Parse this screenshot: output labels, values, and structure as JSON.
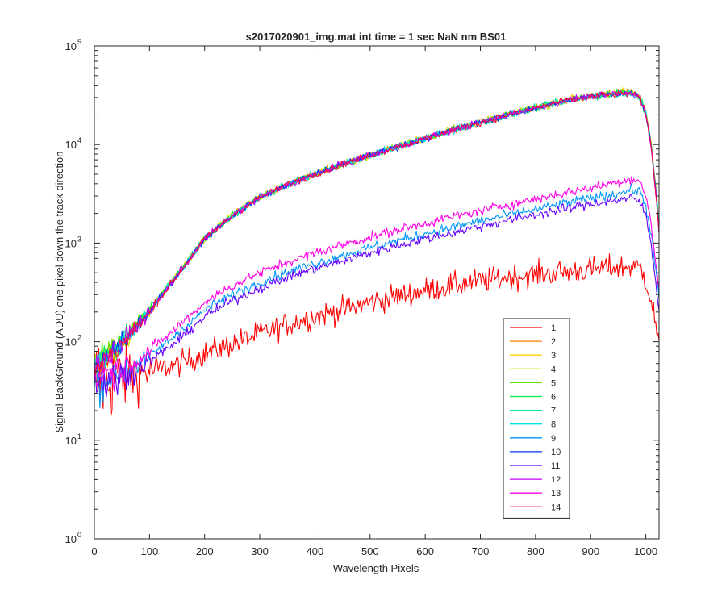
{
  "chart_data": {
    "type": "line",
    "title": "s2017020901_img.mat int time = 1 sec  NaN nm BS01",
    "xlabel": "Wavelength Pixels",
    "ylabel": "Signal-BackGround (ADU) one pixel down the track direction",
    "xlim": [
      0,
      1024
    ],
    "ylim": [
      1,
      100000
    ],
    "y_scale": "log",
    "grid": false,
    "legend_position": "bottom-right",
    "x_ticks": [
      "0",
      "100",
      "200",
      "300",
      "400",
      "500",
      "600",
      "700",
      "800",
      "900",
      "1000"
    ],
    "y_ticks": [
      {
        "base": "10",
        "exp": "0",
        "value": 1
      },
      {
        "base": "10",
        "exp": "1",
        "value": 10
      },
      {
        "base": "10",
        "exp": "2",
        "value": 100
      },
      {
        "base": "10",
        "exp": "3",
        "value": 1000
      },
      {
        "base": "10",
        "exp": "4",
        "value": 10000
      },
      {
        "base": "10",
        "exp": "5",
        "value": 100000
      }
    ],
    "x": [
      0,
      20,
      40,
      60,
      80,
      100,
      150,
      200,
      250,
      300,
      350,
      400,
      450,
      500,
      550,
      600,
      650,
      700,
      750,
      800,
      850,
      900,
      950,
      975,
      990,
      1000,
      1010,
      1020,
      1024
    ],
    "series": [
      {
        "name": "1",
        "color": "#ff0000",
        "noise": 0.09,
        "values": [
          40,
          40,
          42,
          45,
          48,
          50,
          58,
          75,
          95,
          120,
          150,
          180,
          210,
          250,
          290,
          330,
          370,
          410,
          450,
          480,
          510,
          540,
          570,
          580,
          560,
          430,
          260,
          130,
          90
        ]
      },
      {
        "name": "2",
        "color": "#ff7f00",
        "noise": 0.025,
        "values": [
          50,
          65,
          85,
          110,
          150,
          200,
          470,
          1100,
          1900,
          2900,
          3900,
          5000,
          6300,
          7800,
          9500,
          11500,
          14000,
          16800,
          20000,
          23500,
          27500,
          31000,
          33500,
          34000,
          30000,
          21000,
          10000,
          2800,
          1500
        ]
      },
      {
        "name": "3",
        "color": "#ffd400",
        "noise": 0.025,
        "values": [
          50,
          65,
          86,
          112,
          152,
          205,
          480,
          1120,
          1950,
          2950,
          3950,
          5050,
          6350,
          7850,
          9600,
          11600,
          14100,
          16900,
          20100,
          23700,
          27700,
          31300,
          34000,
          34600,
          30500,
          21500,
          10200,
          2900,
          1550
        ]
      },
      {
        "name": "4",
        "color": "#c8e600",
        "noise": 0.025,
        "values": [
          50,
          65,
          85,
          111,
          150,
          202,
          475,
          1110,
          1920,
          2920,
          3920,
          5020,
          6320,
          7820,
          9550,
          11550,
          14050,
          16850,
          20050,
          23600,
          27600,
          31100,
          33700,
          34200,
          30200,
          21200,
          10100,
          2850,
          1500
        ]
      },
      {
        "name": "5",
        "color": "#64e600",
        "noise": 0.025,
        "values": [
          55,
          70,
          92,
          118,
          160,
          210,
          485,
          1120,
          1930,
          2930,
          3930,
          5030,
          6330,
          7830,
          9560,
          11560,
          14060,
          16860,
          20060,
          23600,
          27600,
          31000,
          33500,
          33900,
          30000,
          21000,
          10000,
          2800,
          1450
        ]
      },
      {
        "name": "6",
        "color": "#00f050",
        "noise": 0.025,
        "values": [
          55,
          72,
          95,
          120,
          162,
          212,
          480,
          1110,
          1910,
          2910,
          3910,
          5010,
          6310,
          7810,
          9540,
          11540,
          14040,
          16840,
          20040,
          23550,
          27550,
          30900,
          33300,
          33700,
          29800,
          20900,
          9900,
          2750,
          1400
        ]
      },
      {
        "name": "7",
        "color": "#00e6a0",
        "noise": 0.025,
        "values": [
          52,
          68,
          88,
          114,
          155,
          205,
          475,
          1100,
          1900,
          2900,
          3900,
          5000,
          6300,
          7800,
          9520,
          11520,
          14020,
          16820,
          20020,
          23500,
          27500,
          30800,
          33200,
          33600,
          29700,
          20800,
          9800,
          2700,
          1350
        ]
      },
      {
        "name": "8",
        "color": "#00e6e6",
        "noise": 0.025,
        "values": [
          52,
          67,
          87,
          112,
          152,
          203,
          472,
          1095,
          1895,
          2895,
          3895,
          4995,
          6295,
          7795,
          9510,
          11510,
          14010,
          16810,
          20010,
          23450,
          27450,
          30700,
          33100,
          33500,
          29600,
          20700,
          9700,
          2650,
          1300
        ]
      },
      {
        "name": "9",
        "color": "#0096ff",
        "noise": 0.035,
        "values": [
          40,
          42,
          46,
          52,
          60,
          70,
          120,
          210,
          300,
          400,
          510,
          620,
          750,
          900,
          1060,
          1250,
          1450,
          1680,
          1920,
          2200,
          2500,
          2850,
          3200,
          3500,
          3300,
          2400,
          1200,
          420,
          280
        ]
      },
      {
        "name": "10",
        "color": "#0032ff",
        "noise": 0.025,
        "values": [
          50,
          65,
          85,
          110,
          150,
          200,
          470,
          1100,
          1900,
          2900,
          3900,
          5000,
          6300,
          7800,
          9500,
          11500,
          14000,
          16800,
          20000,
          23500,
          27500,
          30800,
          33000,
          33300,
          29500,
          20500,
          9700,
          2600,
          1300
        ]
      },
      {
        "name": "11",
        "color": "#6400ff",
        "noise": 0.035,
        "values": [
          38,
          40,
          43,
          48,
          55,
          63,
          100,
          180,
          260,
          350,
          450,
          550,
          660,
          800,
          950,
          1100,
          1280,
          1480,
          1700,
          1950,
          2200,
          2500,
          2750,
          2850,
          2600,
          1900,
          950,
          330,
          220
        ]
      },
      {
        "name": "12",
        "color": "#c800ff",
        "noise": 0.025,
        "values": [
          50,
          65,
          85,
          110,
          150,
          200,
          470,
          1100,
          1900,
          2900,
          3900,
          5000,
          6300,
          7800,
          9500,
          11500,
          14000,
          16800,
          20000,
          23500,
          27500,
          30700,
          32800,
          33000,
          29200,
          20200,
          9500,
          2500,
          1250
        ]
      },
      {
        "name": "13",
        "color": "#ff00e6",
        "noise": 0.035,
        "values": [
          45,
          48,
          52,
          58,
          68,
          80,
          140,
          250,
          370,
          500,
          640,
          790,
          960,
          1150,
          1360,
          1590,
          1850,
          2130,
          2450,
          2800,
          3200,
          3650,
          4200,
          4500,
          4200,
          3000,
          1500,
          520,
          340
        ]
      },
      {
        "name": "14",
        "color": "#ff0050",
        "noise": 0.025,
        "values": [
          50,
          65,
          85,
          110,
          150,
          200,
          470,
          1100,
          1900,
          2900,
          3900,
          5000,
          6300,
          7800,
          9500,
          11500,
          14000,
          16800,
          20000,
          23500,
          27500,
          30600,
          32600,
          32800,
          29000,
          20000,
          9400,
          2450,
          1200
        ]
      }
    ]
  }
}
